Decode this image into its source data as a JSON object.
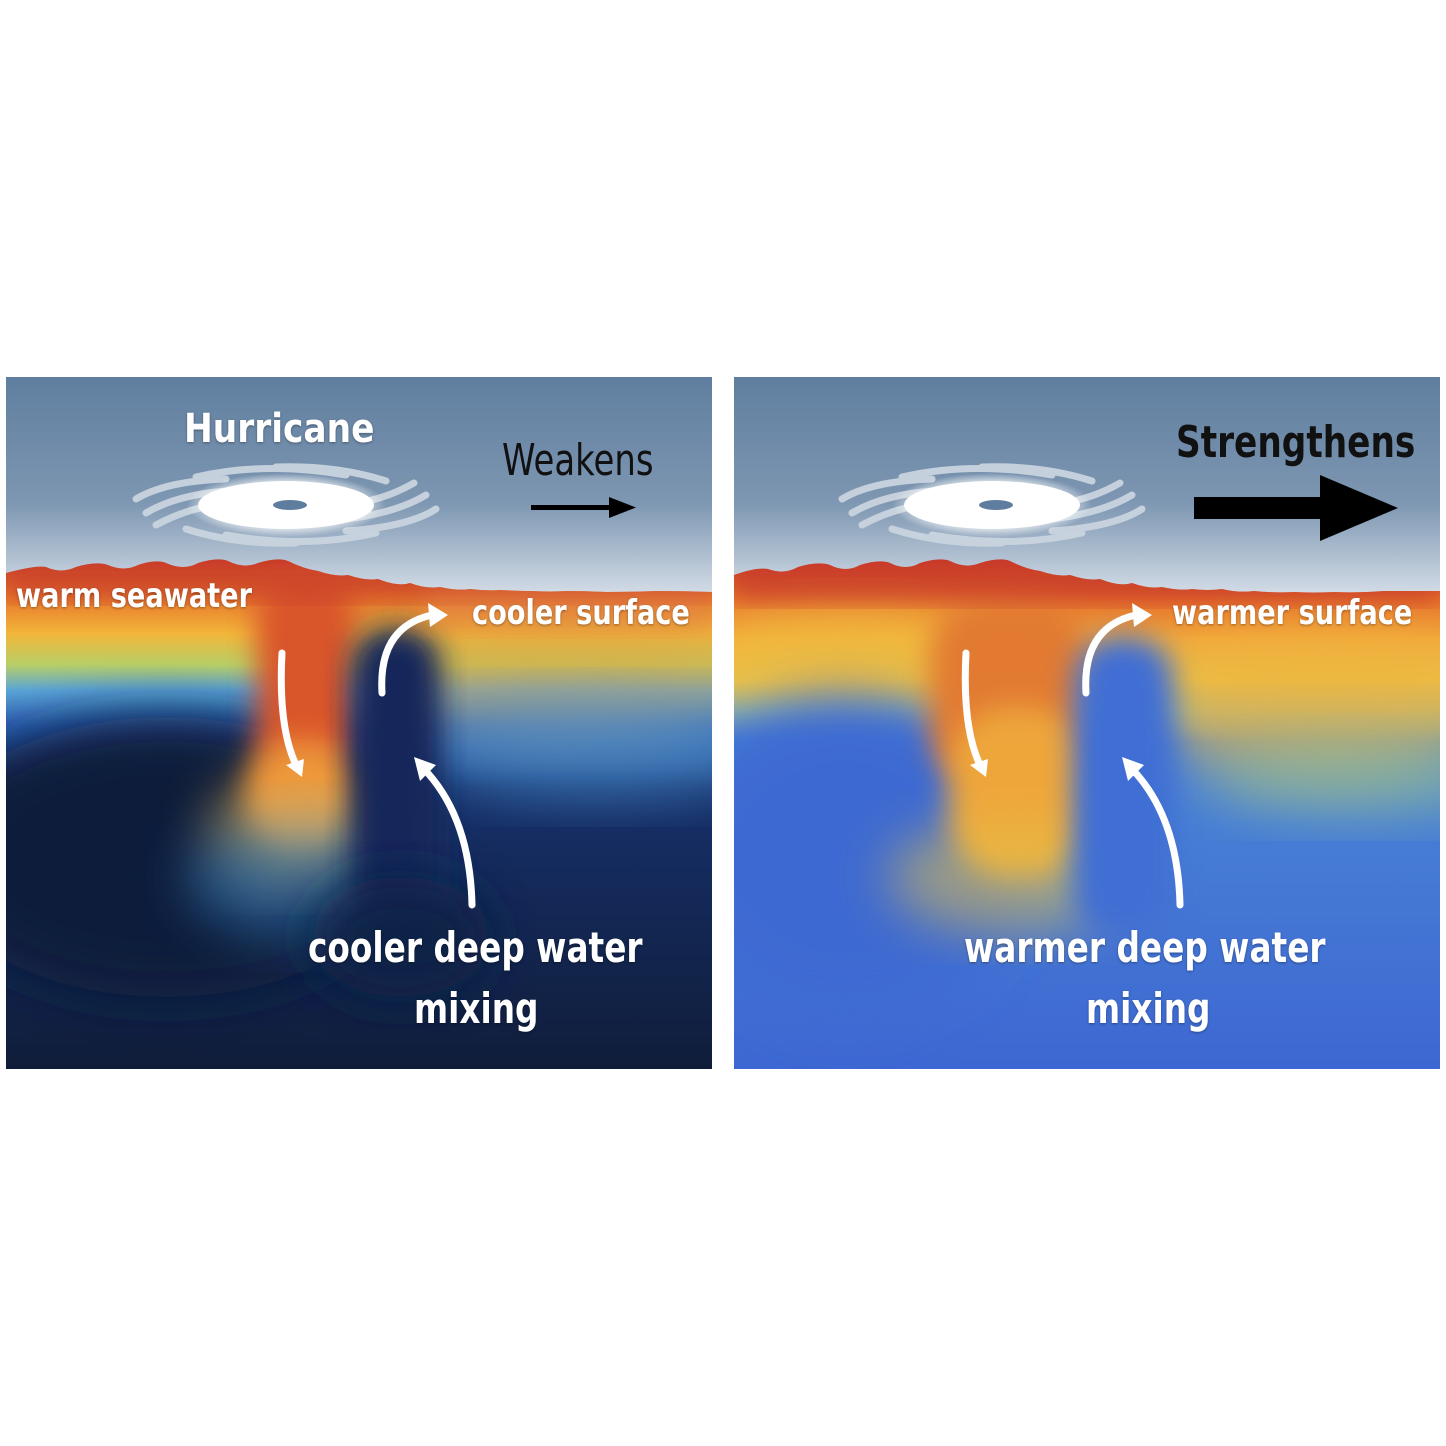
{
  "left_panel": {
    "hurricane_label": "Hurricane",
    "intensity_label": "Weakens",
    "surface_left_label": "warm seawater",
    "surface_right_label": "cooler surface",
    "deep_label_line1": "cooler deep water",
    "deep_label_line2": "mixing"
  },
  "right_panel": {
    "intensity_label": "Strengthens",
    "surface_right_label": "warmer surface",
    "deep_label_line1": "warmer deep water",
    "deep_label_line2": "mixing"
  },
  "colors": {
    "sky": "#6a87a6",
    "warm_red": "#c8362a",
    "warm_orange": "#f0902c",
    "warm_yellow": "#f2c03a",
    "cool_deep_navy": "#142244",
    "warm_deep_blue": "#3f6fd0",
    "arrow_white": "#ffffff",
    "arrow_black": "#000000"
  },
  "icons": [
    "hurricane-icon",
    "arrow-right-icon",
    "curved-arrow-down-icon",
    "curved-arrow-up-icon"
  ]
}
